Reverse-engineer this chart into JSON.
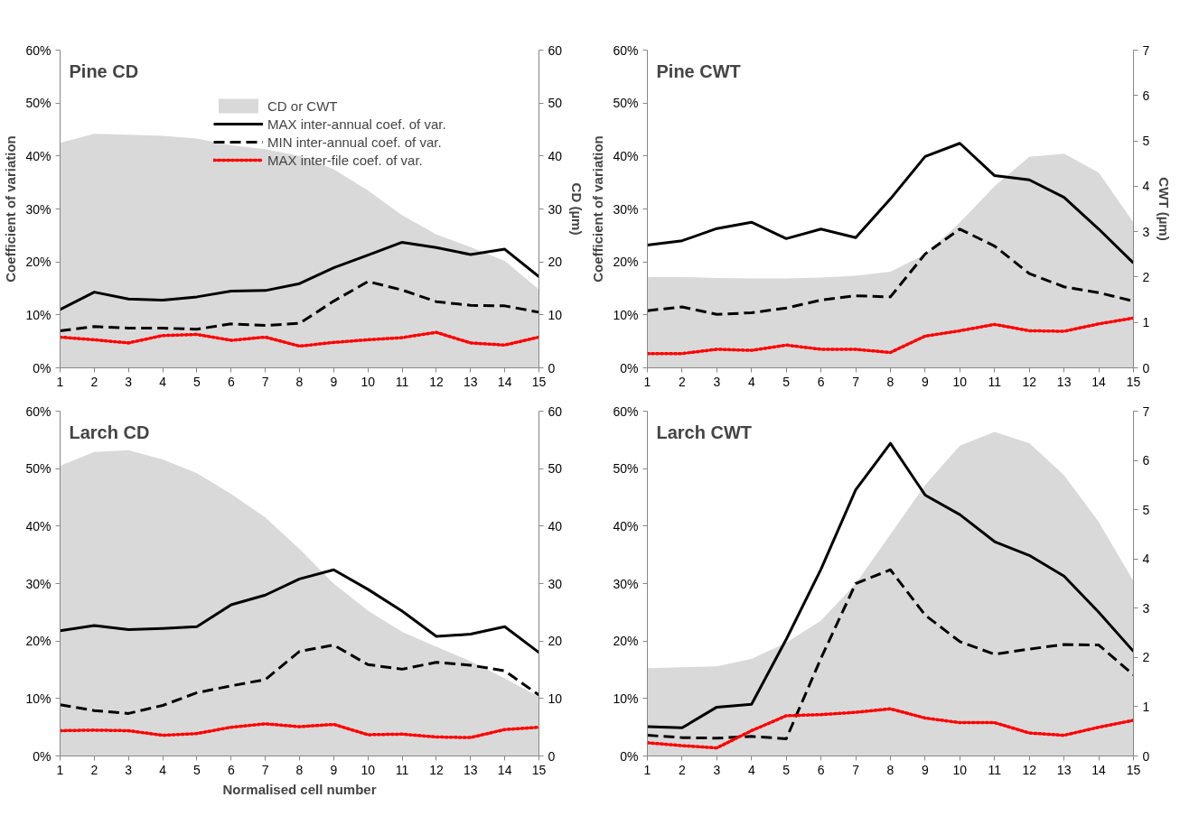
{
  "chart_data": [
    {
      "type": "line",
      "title": "Pine CD",
      "ylabel": "Coefficient of variation",
      "y2label": "CD (µm)",
      "legend": "top right",
      "x": [
        1,
        2,
        3,
        4,
        5,
        6,
        7,
        8,
        9,
        10,
        11,
        12,
        13,
        14,
        15
      ],
      "xlim": [
        1,
        15
      ],
      "xticks": [
        1,
        2,
        3,
        4,
        5,
        6,
        7,
        8,
        9,
        10,
        11,
        12,
        13,
        14,
        15
      ],
      "ylim": [
        0,
        60
      ],
      "yticks": [
        {
          "value": 0,
          "label": "0%"
        },
        {
          "value": 10,
          "label": "10%"
        },
        {
          "value": 20,
          "label": "20%"
        },
        {
          "value": 30,
          "label": "30%"
        },
        {
          "value": 40,
          "label": "40%"
        },
        {
          "value": 50,
          "label": "50%"
        },
        {
          "value": 60,
          "label": "60%"
        }
      ],
      "y2lim": [
        0,
        60
      ],
      "y2ticks": [
        0,
        10,
        20,
        30,
        40,
        50,
        60
      ],
      "series": [
        {
          "name": "CD or CWT",
          "type": "area",
          "axis": "y2",
          "color": "#d9d9d9",
          "values": [
            42.5,
            44.2,
            44,
            43.8,
            43.3,
            42,
            41.3,
            40,
            37.5,
            33.5,
            28.8,
            25.2,
            22.8,
            20.2,
            14.8
          ]
        },
        {
          "name": "MAX inter-annual coef. of var.",
          "color": "#000000",
          "line_style": "solid",
          "values": [
            11,
            14.3,
            13,
            12.8,
            13.4,
            14.5,
            14.6,
            15.9,
            18.9,
            21.3,
            23.7,
            22.7,
            21.4,
            22.4,
            17.2
          ]
        },
        {
          "name": "MIN inter-annual coef. of var.",
          "color": "#000000",
          "line_style": "dashed",
          "values": [
            7,
            7.8,
            7.5,
            7.5,
            7.3,
            8.3,
            8,
            8.4,
            12.6,
            16.3,
            14.7,
            12.5,
            11.8,
            11.7,
            10.5
          ]
        },
        {
          "name": "MAX inter-file coef. of var.",
          "color": "#ff0000",
          "line_style": "dotted",
          "values": [
            5.8,
            5.3,
            4.7,
            6.1,
            6.3,
            5.2,
            5.8,
            4.1,
            4.8,
            5.3,
            5.7,
            6.7,
            4.7,
            4.3,
            5.8
          ]
        }
      ]
    },
    {
      "type": "line",
      "title": "Pine CWT",
      "ylabel": "Coefficient of variation",
      "y2label": "CWT (µm)",
      "x": [
        1,
        2,
        3,
        4,
        5,
        6,
        7,
        8,
        9,
        10,
        11,
        12,
        13,
        14,
        15
      ],
      "xlim": [
        1,
        15
      ],
      "xticks": [
        1,
        2,
        3,
        4,
        5,
        6,
        7,
        8,
        9,
        10,
        11,
        12,
        13,
        14,
        15
      ],
      "ylim": [
        0,
        60
      ],
      "yticks": [
        {
          "value": 0,
          "label": "0%"
        },
        {
          "value": 10,
          "label": "10%"
        },
        {
          "value": 20,
          "label": "20%"
        },
        {
          "value": 30,
          "label": "30%"
        },
        {
          "value": 40,
          "label": "40%"
        },
        {
          "value": 50,
          "label": "50%"
        },
        {
          "value": 60,
          "label": "60%"
        }
      ],
      "y2lim": [
        0,
        7
      ],
      "y2ticks": [
        0,
        1,
        2,
        3,
        4,
        5,
        6,
        7
      ],
      "series": [
        {
          "type": "area",
          "axis": "y2",
          "color": "#d9d9d9",
          "values": [
            2.0,
            2.0,
            1.98,
            1.97,
            1.97,
            1.99,
            2.03,
            2.12,
            2.5,
            3.2,
            4.0,
            4.65,
            4.72,
            4.3,
            3.2
          ]
        },
        {
          "color": "#000000",
          "line_style": "solid",
          "values": [
            23.2,
            24,
            26.3,
            27.5,
            24.4,
            26.2,
            24.6,
            31.9,
            39.9,
            42.4,
            36.3,
            35.5,
            32.2,
            26.2,
            19.8
          ]
        },
        {
          "color": "#000000",
          "line_style": "dashed",
          "values": [
            10.8,
            11.5,
            10.1,
            10.4,
            11.3,
            12.8,
            13.6,
            13.4,
            21.5,
            26.2,
            23,
            17.8,
            15.3,
            14.2,
            12.6
          ]
        },
        {
          "color": "#ff0000",
          "line_style": "dotted",
          "values": [
            2.7,
            2.7,
            3.5,
            3.3,
            4.3,
            3.5,
            3.5,
            2.9,
            6,
            7,
            8.2,
            7,
            6.9,
            8.3,
            9.4
          ]
        }
      ]
    },
    {
      "type": "line",
      "title": "Larch CD",
      "xlabel": "Normalised cell number",
      "x": [
        1,
        2,
        3,
        4,
        5,
        6,
        7,
        8,
        9,
        10,
        11,
        12,
        13,
        14,
        15
      ],
      "xlim": [
        1,
        15
      ],
      "xticks": [
        1,
        2,
        3,
        4,
        5,
        6,
        7,
        8,
        9,
        10,
        11,
        12,
        13,
        14,
        15
      ],
      "ylim": [
        0,
        60
      ],
      "yticks": [
        {
          "value": 0,
          "label": "0%"
        },
        {
          "value": 10,
          "label": "10%"
        },
        {
          "value": 20,
          "label": "20%"
        },
        {
          "value": 30,
          "label": "30%"
        },
        {
          "value": 40,
          "label": "40%"
        },
        {
          "value": 50,
          "label": "50%"
        },
        {
          "value": 60,
          "label": "60%"
        }
      ],
      "y2lim": [
        0,
        60
      ],
      "y2ticks": [
        0,
        10,
        20,
        30,
        40,
        50,
        60
      ],
      "series": [
        {
          "type": "area",
          "axis": "y2",
          "color": "#d9d9d9",
          "values": [
            50.5,
            52.9,
            53.2,
            51.6,
            49.2,
            45.6,
            41.5,
            36,
            30,
            25.3,
            21.6,
            19,
            16.5,
            13.5,
            10.3
          ]
        },
        {
          "color": "#000000",
          "line_style": "solid",
          "values": [
            21.8,
            22.7,
            22,
            22.2,
            22.5,
            26.3,
            28,
            30.8,
            32.4,
            29,
            25.2,
            20.8,
            21.2,
            22.5,
            18
          ]
        },
        {
          "color": "#000000",
          "line_style": "dashed",
          "values": [
            8.9,
            7.9,
            7.4,
            8.8,
            11,
            12.2,
            13.3,
            18.2,
            19.3,
            15.9,
            15.1,
            16.3,
            15.8,
            14.8,
            10.6
          ]
        },
        {
          "color": "#ff0000",
          "line_style": "dotted",
          "values": [
            4.4,
            4.5,
            4.4,
            3.6,
            3.9,
            5.0,
            5.6,
            5.1,
            5.5,
            3.7,
            3.8,
            3.3,
            3.2,
            4.6,
            5.0
          ]
        }
      ]
    },
    {
      "type": "line",
      "title": "Larch CWT",
      "x": [
        1,
        2,
        3,
        4,
        5,
        6,
        7,
        8,
        9,
        10,
        11,
        12,
        13,
        14,
        15
      ],
      "xlim": [
        1,
        15
      ],
      "xticks": [
        1,
        2,
        3,
        4,
        5,
        6,
        7,
        8,
        9,
        10,
        11,
        12,
        13,
        14,
        15
      ],
      "ylim": [
        0,
        60
      ],
      "yticks": [
        {
          "value": 0,
          "label": "0%"
        },
        {
          "value": 10,
          "label": "10%"
        },
        {
          "value": 20,
          "label": "20%"
        },
        {
          "value": 30,
          "label": "30%"
        },
        {
          "value": 40,
          "label": "40%"
        },
        {
          "value": 50,
          "label": "50%"
        },
        {
          "value": 60,
          "label": "60%"
        }
      ],
      "y2lim": [
        0,
        7
      ],
      "y2ticks": [
        0,
        1,
        2,
        3,
        4,
        5,
        6,
        7
      ],
      "series": [
        {
          "type": "area",
          "axis": "y2",
          "color": "#d9d9d9",
          "values": [
            1.78,
            1.8,
            1.82,
            1.97,
            2.3,
            2.75,
            3.5,
            4.5,
            5.5,
            6.3,
            6.58,
            6.35,
            5.7,
            4.75,
            3.55
          ]
        },
        {
          "color": "#000000",
          "line_style": "solid",
          "values": [
            5.1,
            4.9,
            8.5,
            9,
            20.3,
            32.5,
            46.3,
            54.4,
            45.4,
            42,
            37.3,
            34.9,
            31.3,
            25,
            18.2
          ]
        },
        {
          "color": "#000000",
          "line_style": "dashed",
          "values": [
            3.6,
            3.2,
            3.1,
            3.4,
            3,
            17,
            30,
            32.4,
            24.5,
            19.9,
            17.7,
            18.6,
            19.4,
            19.3,
            14.1
          ]
        },
        {
          "color": "#ff0000",
          "line_style": "dotted",
          "values": [
            2.3,
            1.8,
            1.4,
            4.4,
            7,
            7.2,
            7.6,
            8.2,
            6.6,
            5.8,
            5.8,
            4,
            3.6,
            5,
            6.2
          ]
        }
      ]
    }
  ]
}
